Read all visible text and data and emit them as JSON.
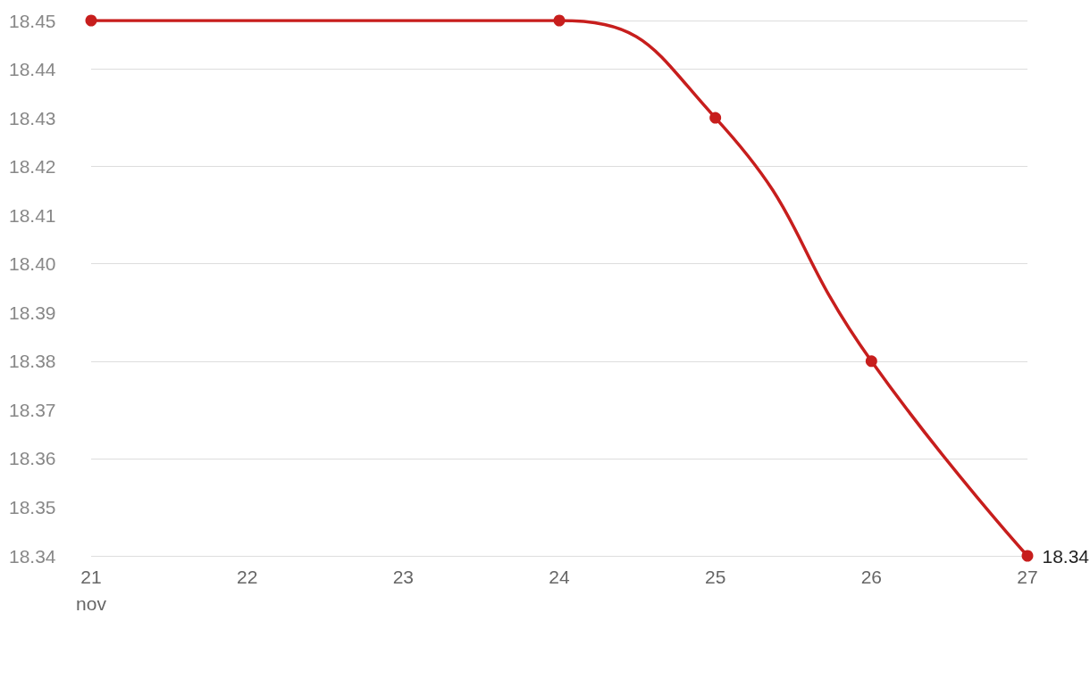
{
  "chart_data": {
    "type": "line",
    "x": [
      "--11-21",
      "--11-24",
      "--11-25",
      "--11-26",
      "--11-27"
    ],
    "series": [
      {
        "color": "#c71e1d",
        "values": [
          18.45,
          18.45,
          18.43,
          18.38,
          18.34
        ],
        "value_labels": [
          null,
          null,
          null,
          null,
          "18.34"
        ]
      }
    ],
    "xlim": [
      "--11-21",
      "--11-27"
    ],
    "xticks": [
      {
        "value": "--11-21",
        "label": "21\nnov"
      },
      {
        "value": "--11-22",
        "label": "22"
      },
      {
        "value": "--11-23",
        "label": "23"
      },
      {
        "value": "--11-24",
        "label": "24"
      },
      {
        "value": "--11-25",
        "label": "25"
      },
      {
        "value": "--11-26",
        "label": "26"
      },
      {
        "value": "--11-27",
        "label": "27"
      }
    ],
    "ylim": [
      18.34,
      18.45
    ],
    "yticks": [
      18.34,
      18.35,
      18.36,
      18.37,
      18.38,
      18.39,
      {
        "value": 18.4,
        "label": "18.40"
      },
      18.41,
      18.42,
      18.43,
      18.44,
      18.45
    ],
    "grid": "y",
    "marker": "circle",
    "line_style": "solid"
  }
}
